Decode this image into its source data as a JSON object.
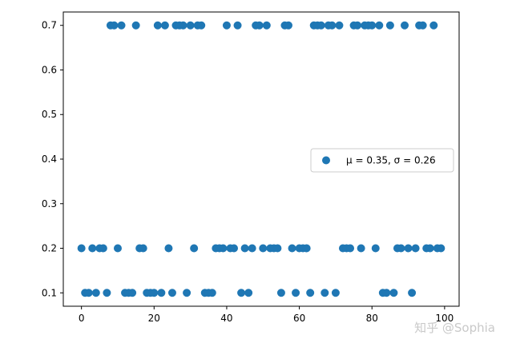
{
  "chart_data": {
    "type": "scatter",
    "xlim": [
      -5,
      104
    ],
    "ylim": [
      0.07,
      0.73
    ],
    "xticks": [
      0,
      20,
      40,
      60,
      80,
      100
    ],
    "yticks": [
      0.1,
      0.2,
      0.3,
      0.4,
      0.5,
      0.6,
      0.7
    ],
    "grid": false,
    "legend_position": "center-right",
    "series": [
      {
        "name": "μ = 0.35,  σ = 0.26",
        "color": "#1f77b4",
        "x": [
          0,
          1,
          2,
          3,
          4,
          5,
          6,
          7,
          8,
          9,
          10,
          11,
          12,
          13,
          14,
          15,
          16,
          17,
          18,
          19,
          20,
          21,
          22,
          23,
          24,
          25,
          26,
          27,
          28,
          29,
          30,
          31,
          32,
          33,
          34,
          35,
          36,
          37,
          38,
          39,
          40,
          41,
          42,
          43,
          44,
          45,
          46,
          47,
          48,
          49,
          50,
          51,
          52,
          53,
          54,
          55,
          56,
          57,
          58,
          59,
          60,
          61,
          62,
          63,
          64,
          65,
          66,
          67,
          68,
          69,
          70,
          71,
          72,
          73,
          74,
          75,
          76,
          77,
          78,
          79,
          80,
          81,
          82,
          83,
          84,
          85,
          86,
          87,
          88,
          89,
          90,
          91,
          92,
          93,
          94,
          95,
          96,
          97,
          98,
          99
        ],
        "y": [
          0.2,
          0.1,
          0.1,
          0.2,
          0.1,
          0.2,
          0.2,
          0.1,
          0.7,
          0.7,
          0.2,
          0.7,
          0.1,
          0.1,
          0.1,
          0.7,
          0.2,
          0.2,
          0.1,
          0.1,
          0.1,
          0.7,
          0.1,
          0.7,
          0.2,
          0.1,
          0.7,
          0.7,
          0.7,
          0.1,
          0.7,
          0.2,
          0.7,
          0.7,
          0.1,
          0.1,
          0.1,
          0.2,
          0.2,
          0.2,
          0.7,
          0.2,
          0.2,
          0.7,
          0.1,
          0.2,
          0.1,
          0.2,
          0.7,
          0.7,
          0.2,
          0.7,
          0.2,
          0.2,
          0.2,
          0.1,
          0.7,
          0.7,
          0.2,
          0.1,
          0.2,
          0.2,
          0.2,
          0.1,
          0.7,
          0.7,
          0.7,
          0.1,
          0.7,
          0.7,
          0.1,
          0.7,
          0.2,
          0.2,
          0.2,
          0.7,
          0.7,
          0.2,
          0.7,
          0.7,
          0.7,
          0.2,
          0.7,
          0.1,
          0.1,
          0.7,
          0.1,
          0.2,
          0.2,
          0.7,
          0.2,
          0.1,
          0.2,
          0.7,
          0.7,
          0.2,
          0.2,
          0.7,
          0.2,
          0.2
        ]
      }
    ]
  },
  "watermark": "知乎 @Sophia"
}
